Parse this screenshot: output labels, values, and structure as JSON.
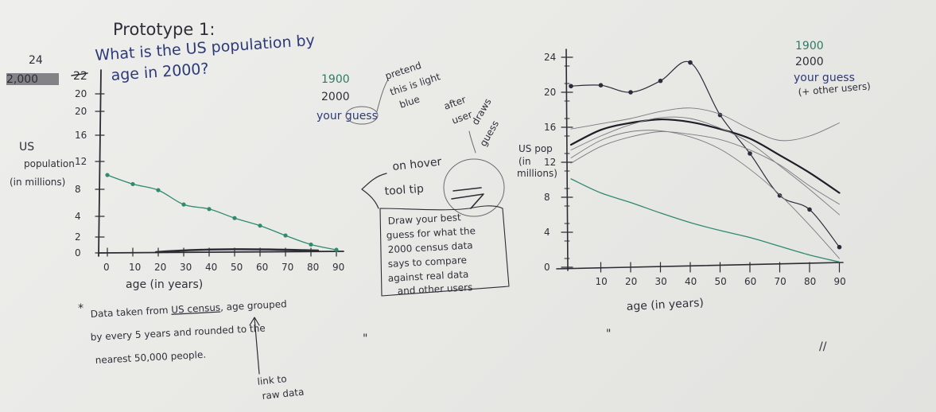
{
  "title": "Prototype 1:",
  "question_line1": "What is the US population by",
  "question_line2": "age in 2000?",
  "left_chart": {
    "ylabel_line1": "US",
    "ylabel_line2": "population",
    "ylabel_line3": "(in millions)",
    "xlabel": "age (in years)",
    "y_top_scribble": "24",
    "y_top_struck": "22",
    "y_ticks": [
      "20",
      "20",
      "16",
      "12",
      "8",
      "4",
      "2",
      "0"
    ],
    "x_ticks": [
      "0",
      "10",
      "20",
      "30",
      "40",
      "50",
      "60",
      "70",
      "80",
      "90"
    ],
    "line_color": "#2f8a6e"
  },
  "footnote": {
    "marker": "*",
    "line1_pre": "Data taken from ",
    "line1_link": "US census",
    "line1_post": ", age grouped",
    "line2": "by every 5 years and rounded to the",
    "line3": "nearest 50,000 people.",
    "mark": "\""
  },
  "link_note": {
    "line1": "link to",
    "line2": "raw data"
  },
  "legend_middle": {
    "year1": "1900",
    "year2": "2000",
    "guess": "your guess",
    "note_line1": "pretend",
    "note_line2": "this is light",
    "note_line3": "blue"
  },
  "after_user": {
    "line1": "after",
    "line2": "user",
    "line3": "draws",
    "line4": "guess"
  },
  "tooltip": {
    "heading_line1": "on hover",
    "heading_line2": "tool tip",
    "text_line1": "Draw your best",
    "text_line2": "guess for what the",
    "text_line3": "2000 census data",
    "text_line4": "says to compare",
    "text_line5": "against real data",
    "text_line6": "and other users"
  },
  "right_chart": {
    "ylabel_line1": "US pop",
    "ylabel_line2": "(in",
    "ylabel_line3": "millions)",
    "xlabel": "age (in years)",
    "y_ticks": [
      "24",
      "20",
      "16",
      "12",
      "8",
      "4",
      "0"
    ],
    "x_ticks": [
      "10",
      "20",
      "30",
      "40",
      "50",
      "60",
      "70",
      "80",
      "90"
    ],
    "legend_year1": "1900",
    "legend_year2": "2000",
    "legend_guess": "your guess",
    "legend_others": "(+ other users)",
    "mark1": "\"",
    "mark2": "//",
    "line_color": "#2f8a6e"
  },
  "chart_data": [
    {
      "type": "line",
      "title": "What is the US population by age in 2000?",
      "xlabel": "age (in years)",
      "ylabel": "US population (in millions)",
      "xlim": [
        0,
        90
      ],
      "ylim": [
        0,
        24
      ],
      "series": [
        {
          "x": [
            0,
            10,
            20,
            30,
            40,
            50,
            60,
            70,
            80,
            90
          ],
          "values": [
            10.1,
            8.9,
            8.1,
            6.2,
            5.6,
            4.4,
            3.4,
            2.1,
            0.9,
            0.2
          ]
        }
      ]
    },
    {
      "type": "line",
      "xlabel": "age (in years)",
      "ylabel": "US pop (in millions)",
      "xlim": [
        0,
        90
      ],
      "ylim": [
        0,
        24
      ],
      "series": [
        {
          "name": "2000",
          "x": [
            0,
            10,
            20,
            30,
            40,
            50,
            60,
            70,
            80,
            90
          ],
          "values": [
            20.7,
            20.8,
            20.0,
            21.3,
            23.4,
            17.4,
            13.0,
            8.2,
            6.6,
            2.3
          ]
        },
        {
          "name": "1900",
          "x": [
            0,
            10,
            20,
            30,
            40,
            50,
            60,
            70,
            80,
            90
          ],
          "values": [
            10.1,
            8.5,
            7.4,
            6.2,
            5.1,
            4.2,
            3.4,
            2.4,
            1.4,
            0.6
          ]
        },
        {
          "name": "your guess",
          "x": [
            0,
            10,
            20,
            30,
            40,
            50,
            60,
            70,
            80,
            90
          ],
          "values": [
            14.0,
            15.7,
            16.5,
            16.9,
            16.6,
            15.8,
            14.7,
            12.8,
            10.8,
            8.5
          ]
        },
        {
          "name": "other users",
          "x": [
            0,
            10,
            20,
            30,
            40,
            50,
            60,
            70,
            80,
            90
          ],
          "values": [
            12.5,
            14.5,
            15.5,
            15.6,
            14.9,
            13.5,
            11.2,
            8.3,
            4.8,
            1.0
          ]
        },
        {
          "name": "other users",
          "x": [
            0,
            10,
            20,
            30,
            40,
            50,
            60,
            70,
            80,
            90
          ],
          "values": [
            15.8,
            16.4,
            17.0,
            17.8,
            18.2,
            17.5,
            15.8,
            14.5,
            15.0,
            16.5
          ]
        },
        {
          "name": "other users",
          "x": [
            0,
            10,
            20,
            30,
            40,
            50,
            60,
            70,
            80,
            90
          ],
          "values": [
            13.4,
            15.0,
            16.3,
            17.1,
            17.0,
            15.9,
            14.2,
            11.6,
            8.9,
            6.0
          ]
        },
        {
          "name": "other users",
          "x": [
            0,
            10,
            20,
            30,
            40,
            50,
            60,
            70,
            80,
            90
          ],
          "values": [
            11.9,
            13.8,
            14.9,
            15.5,
            15.2,
            14.6,
            13.4,
            11.7,
            9.3,
            7.2
          ]
        }
      ]
    }
  ]
}
